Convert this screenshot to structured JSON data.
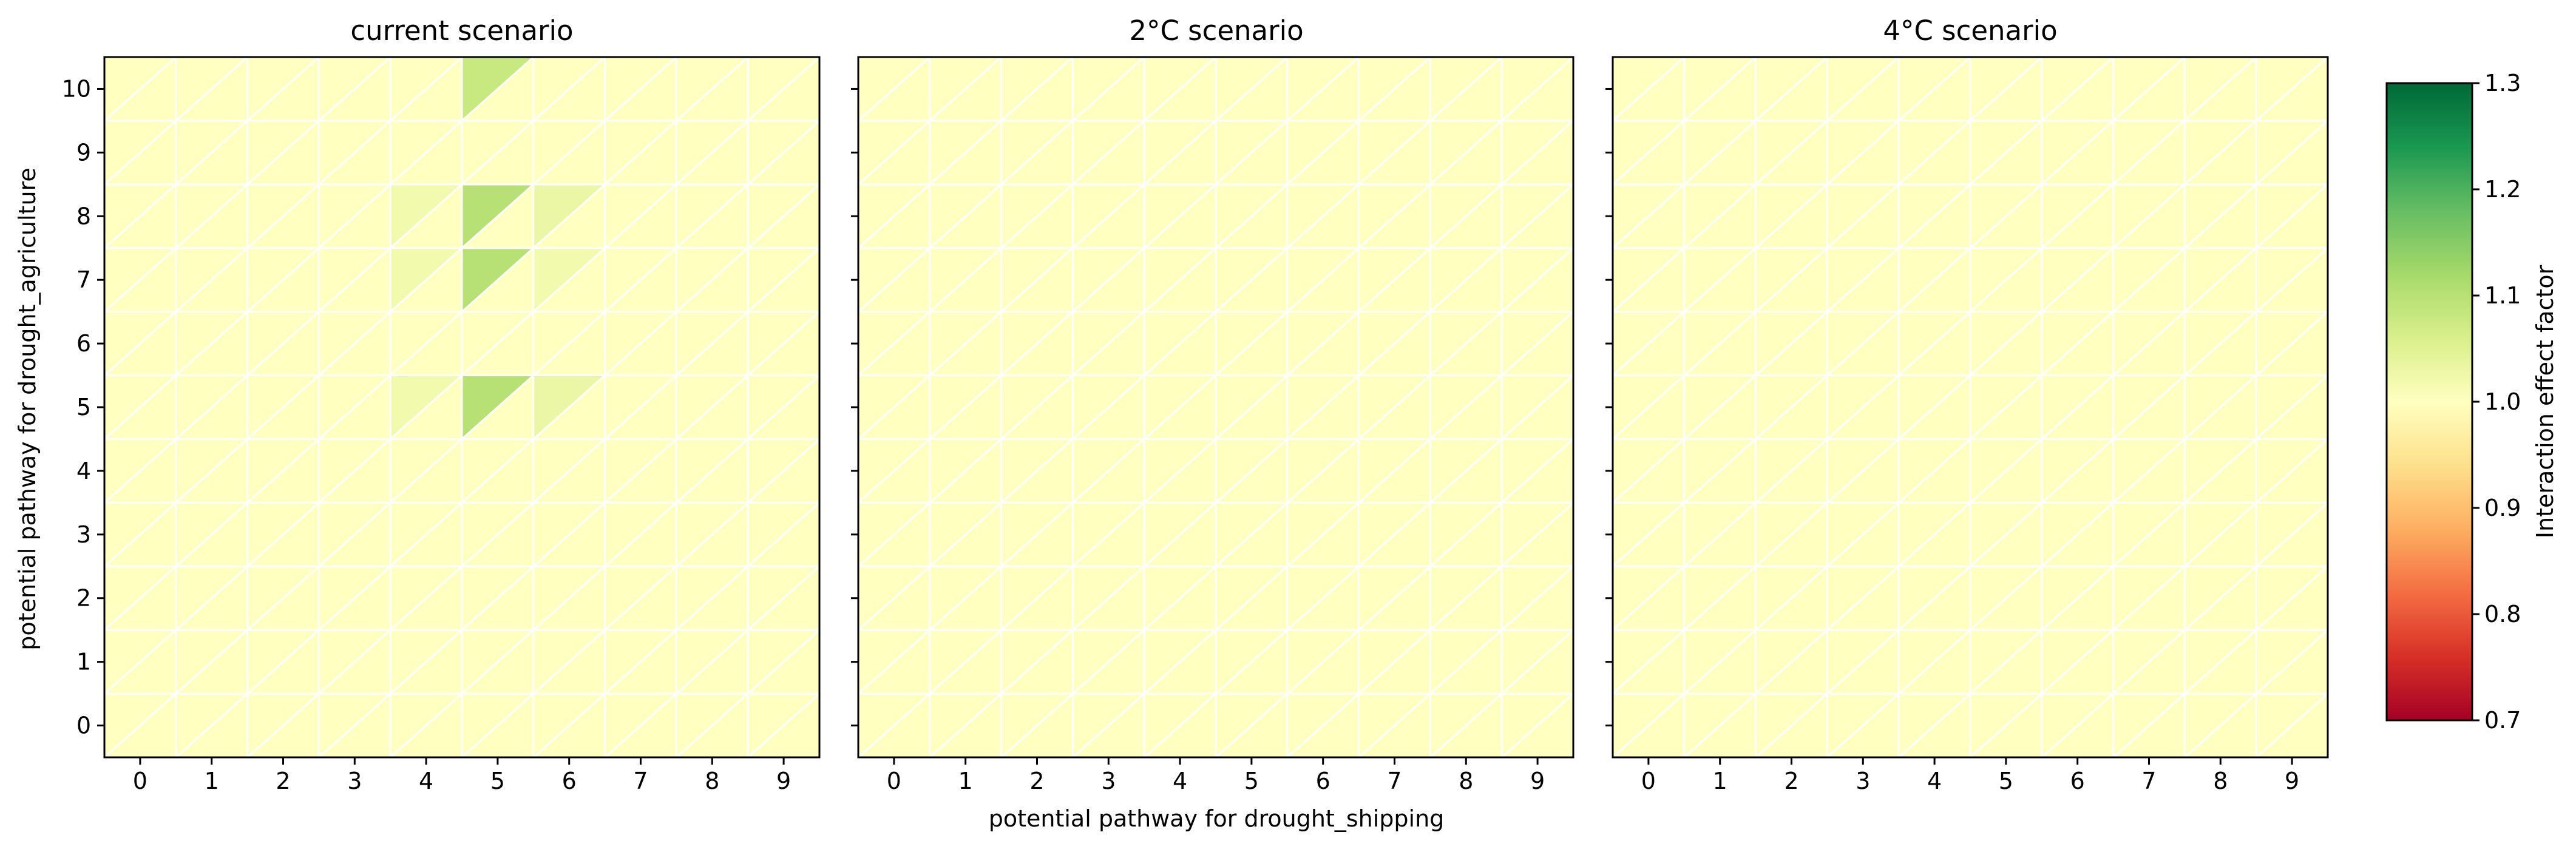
{
  "chart_data": {
    "type": "heatmap",
    "panels": [
      {
        "title": "current scenario",
        "x": [
          0,
          1,
          2,
          3,
          4,
          5,
          6,
          7,
          8,
          9
        ],
        "y": [
          0,
          1,
          2,
          3,
          4,
          5,
          6,
          7,
          8,
          9,
          10
        ],
        "baseline": 1.0,
        "highlights": [
          {
            "x": 5,
            "y": 10,
            "value": 1.08
          },
          {
            "x": 5,
            "y": 8,
            "value": 1.1
          },
          {
            "x": 5,
            "y": 7,
            "value": 1.1
          },
          {
            "x": 5,
            "y": 5,
            "value": 1.1
          },
          {
            "x": 4,
            "y": 8,
            "value": 1.02
          },
          {
            "x": 4,
            "y": 7,
            "value": 1.02
          },
          {
            "x": 4,
            "y": 5,
            "value": 1.02
          },
          {
            "x": 6,
            "y": 8,
            "value": 1.03
          },
          {
            "x": 6,
            "y": 7,
            "value": 1.02
          },
          {
            "x": 6,
            "y": 5,
            "value": 1.03
          }
        ]
      },
      {
        "title": "2°C scenario",
        "x": [
          0,
          1,
          2,
          3,
          4,
          5,
          6,
          7,
          8,
          9
        ],
        "y": [
          0,
          1,
          2,
          3,
          4,
          5,
          6,
          7,
          8,
          9,
          10
        ],
        "baseline": 1.0,
        "highlights": []
      },
      {
        "title": "4°C scenario",
        "x": [
          0,
          1,
          2,
          3,
          4,
          5,
          6,
          7,
          8,
          9
        ],
        "y": [
          0,
          1,
          2,
          3,
          4,
          5,
          6,
          7,
          8,
          9,
          10
        ],
        "baseline": 1.0,
        "highlights": []
      }
    ],
    "xlabel": "potential pathway for drought_shipping",
    "ylabel": "potential pathway for drought_agriculture",
    "colorbar": {
      "label": "Interaction effect factor",
      "min": 0.7,
      "max": 1.3,
      "ticks": [
        "0.7",
        "0.8",
        "0.9",
        "1.0",
        "1.1",
        "1.2",
        "1.3"
      ],
      "colormap": "RdYlGn"
    }
  }
}
